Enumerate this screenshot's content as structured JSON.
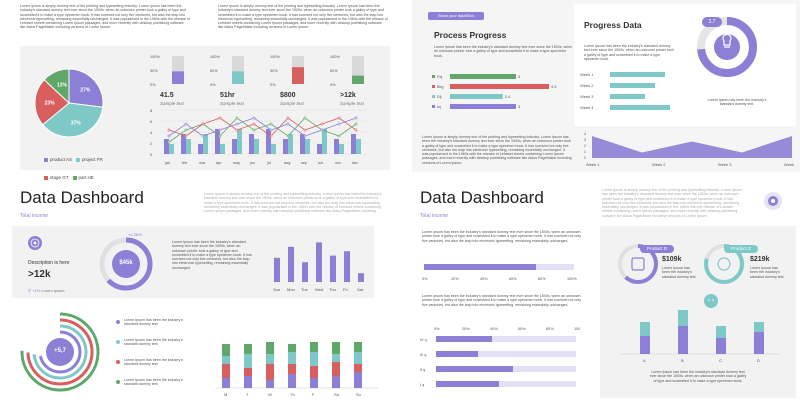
{
  "lorem": {
    "short": "Lorem Ipsum is simply dummy text of the printing and typesetting industry. Lorem Ipsum has been the industry's standard dummy text ever since the 1500s, when an unknown printer took a galley of type and scrambled it to make a type specimen book.",
    "long": "Lorem Ipsum is simply dummy text of the printing and typesetting industry. Lorem Ipsum has been the industry's standard dummy text ever since the 1500s, when an unknown printer took a galley of type and scrambled it to make a type specimen book. It has survived not only five centuries, but also the leap into electronic typesetting, remaining essentially unchanged. It was popularised in the 1960s with the release of Letraset sheets containing Lorem Ipsum passages, and more recently with desktop publishing software like Aldus PageMaker including versions of Lorem Ipsum.",
    "mid": "Lorem Ipsum has been the industry's standard dummy text ever since the 1500s, when an unknown printer took a galley of type and scrambled it to make a type specimen book.",
    "survived": "It has survived not only five centuries, but also the leap into electronic typesetting, remaining essentially unchanged.",
    "item": "Lorem Ipsum has been the industry's standard dummy text.",
    "small": "Lorem Ipsum has been the industry's standard dummy text."
  },
  "q1": {
    "pie": {
      "slices": [
        {
          "label": "27%",
          "value": 27,
          "color": "#8b7fd6"
        },
        {
          "label": "37%",
          "value": 37,
          "color": "#7ec8c8"
        },
        {
          "label": "23%",
          "value": 23,
          "color": "#d95f5f"
        },
        {
          "label": "13%",
          "value": 13,
          "color": "#5fa86a"
        }
      ]
    },
    "legend": [
      "product AS",
      "project FR",
      "stage GT",
      "part HE"
    ],
    "mini_bars": [
      {
        "value": "41.5",
        "label": "Sample text",
        "fill": 45,
        "color": "#8b7fd6",
        "ticks": [
          "100%",
          "50%",
          "0%"
        ]
      },
      {
        "value": "51hr",
        "label": "Sample text",
        "fill": 45,
        "color": "#7ec8c8",
        "ticks": [
          "100%",
          "50%",
          "0%"
        ]
      },
      {
        "value": "$800",
        "label": "Sample text",
        "fill": 60,
        "color": "#d95f5f",
        "ticks": [
          "100%",
          "50%",
          "0%"
        ]
      },
      {
        "value": ">12k",
        "label": "Sample text",
        "fill": 30,
        "color": "#5fa86a",
        "ticks": [
          "100%",
          "50%",
          "0%"
        ]
      }
    ],
    "line_months": [
      "jan",
      "feb",
      "mar",
      "apr",
      "may",
      "jun",
      "jul",
      "aug",
      "sep",
      "oct",
      "nov",
      "dec"
    ],
    "line_yticks": [
      "8",
      "6",
      "4",
      "2",
      "0"
    ]
  },
  "q2": {
    "badge": "Show your dataSlics",
    "pp_title": "Process Progress",
    "pp_bars": [
      {
        "label": "Fej",
        "value": 3,
        "color": "#5fa86a"
      },
      {
        "label": "Bkg",
        "value": 4.5,
        "color": "#d95f5f"
      },
      {
        "label": "Dij",
        "value": 2.4,
        "color": "#7ec8c8"
      },
      {
        "label": "Ioj",
        "value": 3,
        "color": "#8b7fd6"
      }
    ],
    "pp_vals": [
      "3",
      "4.5",
      "2.4",
      "3"
    ],
    "pd_title": "Progress Data",
    "pd_badge": "3.7",
    "weeks": [
      "Week 1",
      "Week 2",
      "Week 3",
      "Week 4"
    ],
    "week_bars": [
      55,
      45,
      35,
      60
    ],
    "area_labels": [
      "Week 1",
      "Week 2",
      "Week 3",
      "Week4"
    ],
    "area_vals": [
      4,
      1,
      3,
      1,
      4
    ]
  },
  "q3": {
    "title": "Data Dashboard",
    "subtitle": "Total income",
    "desc": "Description is here",
    "desc_val": ">12k",
    "stat": "+1%",
    "stat_label": "Lorem ipsum",
    "ring_val": "$45k",
    "ring_pct": "+4.36%",
    "days": [
      "Sun",
      "Mon",
      "Tue",
      "Wed",
      "Thu",
      "Fri",
      "Sat"
    ],
    "day_bars": [
      55,
      80,
      45,
      90,
      60,
      70,
      20
    ],
    "conc_val": "+5,7",
    "stack_days": [
      "M",
      "T",
      "W",
      "Th",
      "F",
      "Sa",
      "Su"
    ]
  },
  "q4": {
    "title": "Data Dashboard",
    "subtitle": "Total income",
    "scale": [
      "0%",
      "20%",
      "40%",
      "60%",
      "80%",
      "100%"
    ],
    "h_rows": [
      "IV q",
      "III q",
      "II q",
      "I q"
    ],
    "prodD": "Product D",
    "prodZ": "Product Z",
    "valD": "$109k",
    "valZ": "$219k",
    "col_labels": [
      "A",
      "B",
      "C",
      "D"
    ]
  }
}
